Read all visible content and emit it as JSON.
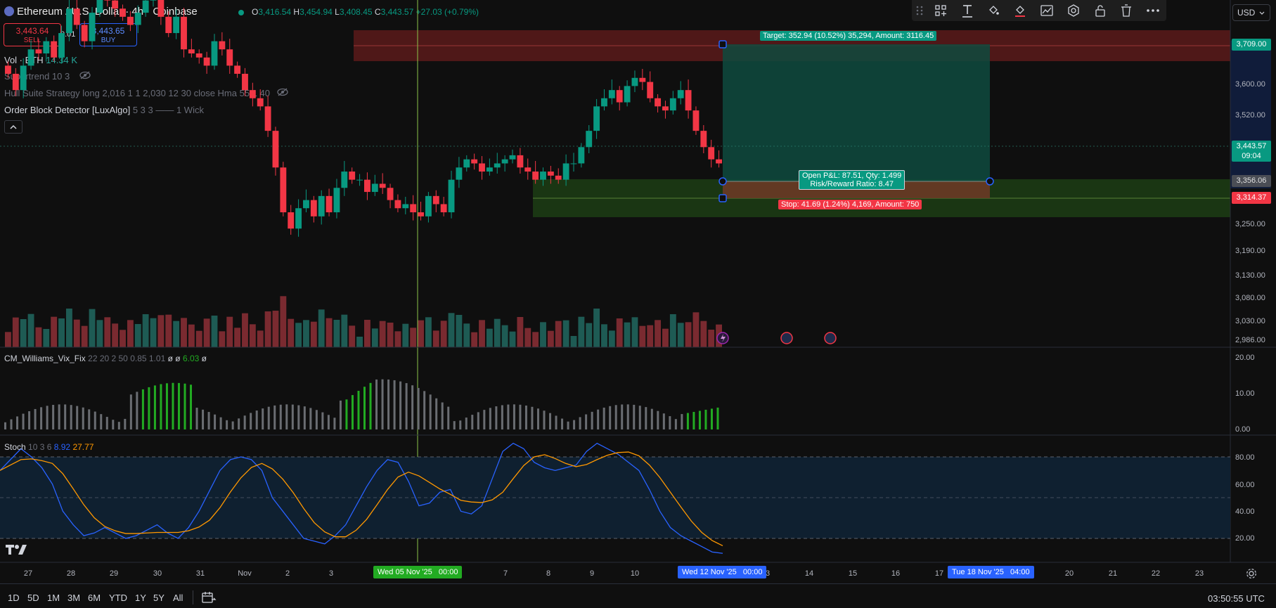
{
  "header": {
    "symbol_title": "Ethereum / U.S. Dollar · 4h · Coinbase",
    "ohlc": {
      "o_label": "O",
      "o": "3,416.54",
      "h_label": "H",
      "h": "3,454.94",
      "l_label": "L",
      "l": "3,408.45",
      "c_label": "C",
      "c": "3,443.57",
      "change": "+27.03 (+0.79%)"
    }
  },
  "trade": {
    "sell_price": "3,443.64",
    "sell_label": "SELL",
    "qty": "0.01",
    "buy_price": "3,443.65",
    "buy_label": "BUY"
  },
  "indicators": {
    "vol": {
      "name": "Vol · ETH",
      "value": "14.34 K"
    },
    "supertrend": {
      "name": "Supertrend 10 3"
    },
    "hull": {
      "name": "Hull Suite Strategy long 2,016 1 1 2,030 12 30 close Hma 55 1 40"
    },
    "orderblock": {
      "name": "Order Block Detector [LuxAlgo]",
      "params": "5 3 3 —— 1 Wick"
    },
    "vix": {
      "name": "CM_Williams_Vix_Fix",
      "params": "22 20 2 50 0.85 1.01",
      "sym1": "ø",
      "sym2": "ø",
      "value": "6.03",
      "sym3": "ø"
    },
    "stoch": {
      "name": "Stoch",
      "params": "10 3 6",
      "k": "8.92",
      "d": "27.77"
    }
  },
  "toolbar": {
    "icons": [
      "grip-icon",
      "add-element-icon",
      "text-icon",
      "fill-icon",
      "line-color-icon",
      "chart-settings-icon",
      "hexagon-icon",
      "lock-icon",
      "trash-icon",
      "more-icon"
    ]
  },
  "currency": "USD",
  "price_axis": {
    "labels": [
      "3,600.00",
      "3,520.00",
      "3,250.00",
      "3,190.00",
      "3,130.00",
      "3,080.00",
      "3,030.00",
      "2,986.00"
    ],
    "target_price": "3,709.00",
    "current_price": "3,443.57",
    "countdown": "09:04",
    "entry_price": "3,356.06",
    "stop_price": "3,314.37"
  },
  "vix_axis": [
    "20.00",
    "10.00",
    "0.00"
  ],
  "stoch_axis": [
    "80.00",
    "60.00",
    "40.00",
    "20.00"
  ],
  "position_tool": {
    "target": "Target: 352.94 (10.52%) 35,294, Amount: 3116.45",
    "pnl": "Open P&L: 87.51, Qty: 1.499",
    "rr": "Risk/Reward Ratio: 8.47",
    "stop": "Stop: 41.69 (1.24%) 4,169, Amount: 750"
  },
  "time_axis": {
    "labels": [
      "27",
      "28",
      "29",
      "30",
      "31",
      "Nov",
      "2",
      "3",
      "7",
      "8",
      "9",
      "10",
      "3",
      "14",
      "15",
      "16",
      "17",
      "20",
      "21",
      "22",
      "23"
    ],
    "cursor_date": "Wed 05 Nov '25",
    "cursor_time": "00:00",
    "start_date": "Wed 12 Nov '25",
    "start_time": "00:00",
    "end_date": "Tue 18 Nov '25",
    "end_time": "04:00"
  },
  "ranges": [
    "1D",
    "5D",
    "1M",
    "3M",
    "6M",
    "YTD",
    "1Y",
    "5Y",
    "All"
  ],
  "clock": "03:50:55 UTC",
  "colors": {
    "up": "#089981",
    "down": "#f23645",
    "blue": "#2962ff",
    "orange": "#ff9800",
    "green": "#22ab22"
  }
}
